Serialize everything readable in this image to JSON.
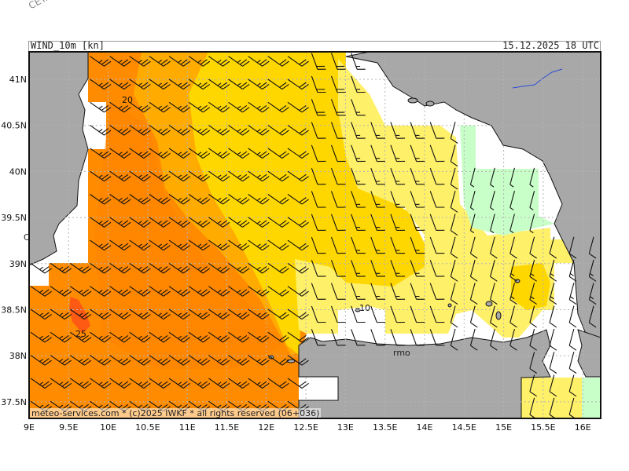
{
  "watermark": "CETA - Inst.",
  "header": {
    "left": "WIND_10m [kn]",
    "right": "15.12.2025 18 UTC"
  },
  "footer": "meteo-services.com * (c)2025 IWKF * all rights reserved (06+036)",
  "place_fragment": "rmo",
  "place_fragment_2": "C",
  "axes": {
    "lat_labels": [
      "41N",
      "40.5N",
      "40N",
      "39.5N",
      "39N",
      "38.5N",
      "38N",
      "37.5N"
    ],
    "lon_labels": [
      "9E",
      "9.5E",
      "10E",
      "10.5E",
      "11E",
      "11.5E",
      "12E",
      "12.5E",
      "13E",
      "13.5E",
      "14E",
      "14.5E",
      "15E",
      "15.5E",
      "16E"
    ]
  },
  "contour_labels": [
    "20",
    "25",
    "10"
  ],
  "colors": {
    "sea_25_30kn": "#ff8c00",
    "sea_20_25kn": "#ffab00",
    "sea_15_20kn": "#ffd700",
    "sea_10_15kn": "#fff06a",
    "sea_5_10kn": "#c8ffc8",
    "high_band": "#ff5a14",
    "land": "#a8a8a8",
    "grid": "#b4b4b4",
    "river": "#2c4cd6"
  }
}
